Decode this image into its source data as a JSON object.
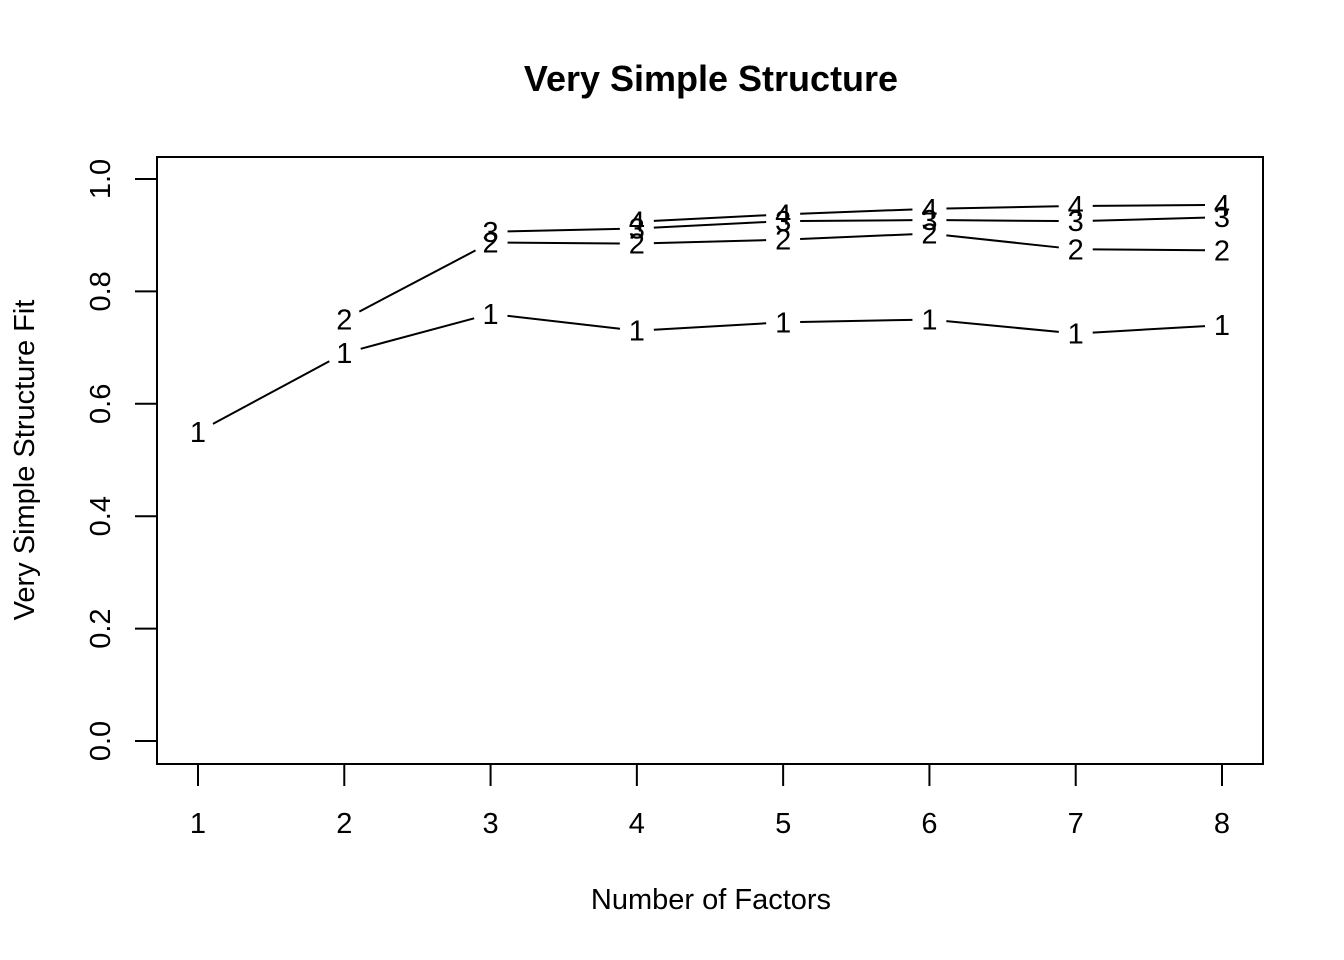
{
  "chart_data": {
    "type": "line",
    "title": "Very Simple Structure",
    "xlabel": "Number of Factors",
    "ylabel": "Very Simple Structure Fit",
    "xlim": [
      1,
      8
    ],
    "ylim": [
      0,
      1
    ],
    "x_ticks": [
      "1",
      "2",
      "3",
      "4",
      "5",
      "6",
      "7",
      "8"
    ],
    "y_ticks": [
      "0.0",
      "0.2",
      "0.4",
      "0.6",
      "0.8",
      "1.0"
    ],
    "grid": false,
    "legend": "none",
    "series": [
      {
        "name": "1",
        "x": [
          1,
          2,
          3,
          4,
          5,
          6,
          7,
          8
        ],
        "values": [
          0.55,
          0.69,
          0.76,
          0.73,
          0.745,
          0.75,
          0.725,
          0.74
        ]
      },
      {
        "name": "2",
        "x": [
          2,
          3,
          4,
          5,
          6,
          7,
          8
        ],
        "values": [
          0.75,
          0.887,
          0.885,
          0.892,
          0.903,
          0.875,
          0.873
        ]
      },
      {
        "name": "3",
        "x": [
          3,
          4,
          5,
          6,
          7,
          8
        ],
        "values": [
          0.906,
          0.912,
          0.925,
          0.927,
          0.925,
          0.932
        ]
      },
      {
        "name": "4",
        "x": [
          4,
          5,
          6,
          7,
          8
        ],
        "values": [
          0.924,
          0.937,
          0.947,
          0.952,
          0.954
        ]
      }
    ]
  }
}
